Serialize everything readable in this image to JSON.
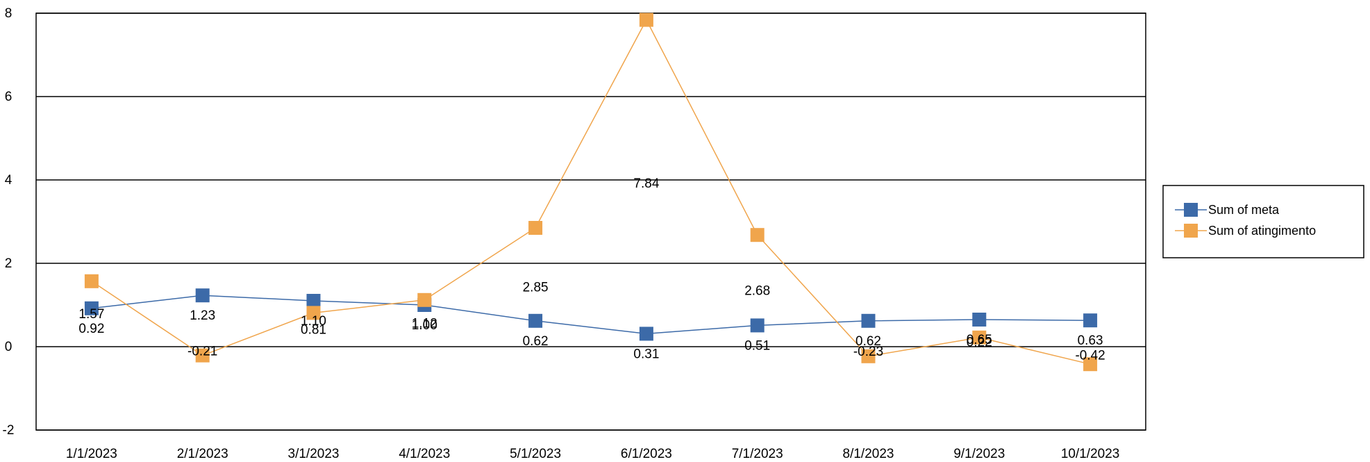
{
  "chart_data": {
    "type": "line",
    "title": "",
    "xlabel": "",
    "ylabel": "",
    "categories": [
      "1/1/2023",
      "2/1/2023",
      "3/1/2023",
      "4/1/2023",
      "5/1/2023",
      "6/1/2023",
      "7/1/2023",
      "8/1/2023",
      "9/1/2023",
      "10/1/2023"
    ],
    "ylim": [
      -2,
      8
    ],
    "yticks": [
      "-2",
      "0",
      "2",
      "4",
      "6",
      "8"
    ],
    "grid": true,
    "legend_position": "right",
    "series": [
      {
        "name": "Sum of meta",
        "color": "#3c6aa8",
        "values": [
          0.92,
          1.23,
          1.1,
          1.0,
          0.62,
          0.31,
          0.51,
          0.62,
          0.65,
          0.63
        ],
        "labels": [
          "0.92",
          "1.23",
          "1.10",
          "1.00",
          "0.62",
          "0.31",
          "0.51",
          "0.62",
          "0.65",
          "0.63"
        ]
      },
      {
        "name": "Sum of atingimento",
        "color": "#f0a54c",
        "values": [
          1.57,
          -0.21,
          0.81,
          1.12,
          2.85,
          7.84,
          2.68,
          -0.23,
          0.22,
          -0.42
        ],
        "labels": [
          "1.57",
          "-0.21",
          "0.81",
          "1.12",
          "2.85",
          "7.84",
          "2.68",
          "-0.23",
          "0.22",
          "-0.42"
        ]
      }
    ]
  }
}
